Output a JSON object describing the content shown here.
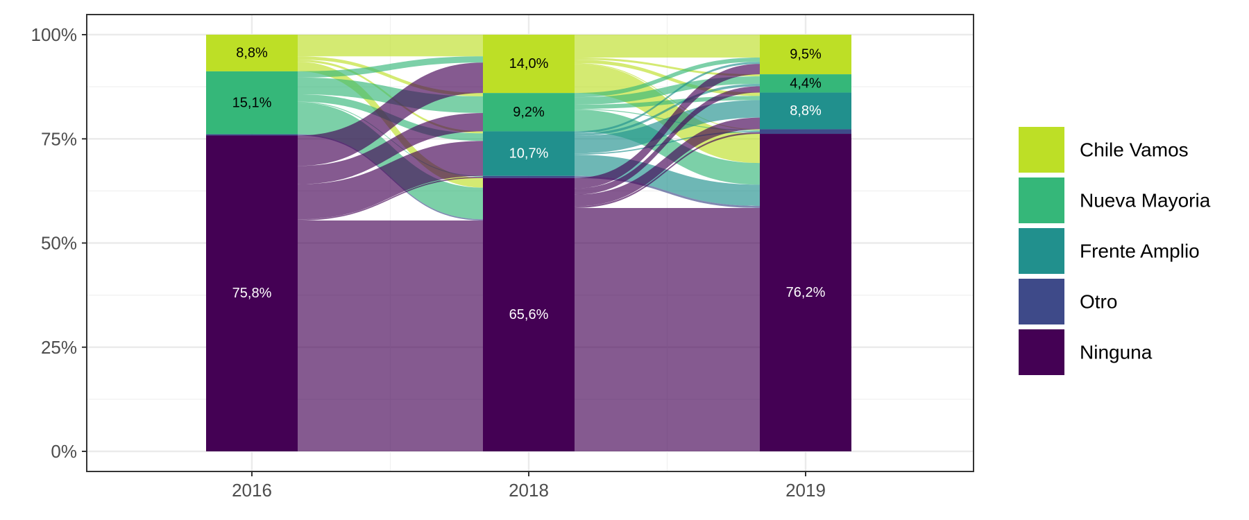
{
  "chart_data": {
    "type": "alluvial",
    "title": "",
    "xlabel": "",
    "ylabel": "",
    "ylim": [
      0,
      100
    ],
    "grid": true,
    "legend_position": "right",
    "x": [
      "2016",
      "2018",
      "2019"
    ],
    "y_ticks": [
      "0%",
      "25%",
      "50%",
      "75%",
      "100%"
    ],
    "y_tick_values": [
      0,
      25,
      50,
      75,
      100
    ],
    "categories": [
      "Chile Vamos",
      "Nueva Mayoria",
      "Frente Amplio",
      "Otro",
      "Ninguna"
    ],
    "colors": {
      "Chile Vamos": "#bddf26",
      "Nueva Mayoria": "#35b779",
      "Frente Amplio": "#21908d",
      "Otro": "#3e4a89",
      "Ninguna": "#440154"
    },
    "series": [
      {
        "name": "Chile Vamos",
        "values": [
          8.8,
          14.0,
          9.5
        ]
      },
      {
        "name": "Nueva Mayoria",
        "values": [
          15.1,
          9.2,
          4.4
        ]
      },
      {
        "name": "Frente Amplio",
        "values": [
          0.0,
          10.7,
          8.8
        ]
      },
      {
        "name": "Otro",
        "values": [
          0.3,
          0.5,
          1.1
        ]
      },
      {
        "name": "Ninguna",
        "values": [
          75.8,
          65.6,
          76.2
        ]
      }
    ],
    "segment_labels": [
      [
        "8,8%",
        "15,1%",
        "",
        "",
        "75,8%"
      ],
      [
        "14,0%",
        "9,2%",
        "10,7%",
        "",
        "65,6%"
      ],
      [
        "9,5%",
        "4,4%",
        "8,8%",
        "",
        "76,2%"
      ]
    ],
    "flows": [
      [
        {
          "from": "Chile Vamos",
          "to": "Chile Vamos",
          "value": 5.2
        },
        {
          "from": "Chile Vamos",
          "to": "Nueva Mayoria",
          "value": 0.8
        },
        {
          "from": "Chile Vamos",
          "to": "Frente Amplio",
          "value": 0.5
        },
        {
          "from": "Chile Vamos",
          "to": "Ninguna",
          "value": 2.3
        },
        {
          "from": "Nueva Mayoria",
          "to": "Chile Vamos",
          "value": 1.5
        },
        {
          "from": "Nueva Mayoria",
          "to": "Nueva Mayoria",
          "value": 4.0
        },
        {
          "from": "Nueva Mayoria",
          "to": "Frente Amplio",
          "value": 1.8
        },
        {
          "from": "Nueva Mayoria",
          "to": "Otro",
          "value": 0.2
        },
        {
          "from": "Nueva Mayoria",
          "to": "Ninguna",
          "value": 7.6
        },
        {
          "from": "Otro",
          "to": "Ninguna",
          "value": 0.3
        },
        {
          "from": "Ninguna",
          "to": "Chile Vamos",
          "value": 7.3
        },
        {
          "from": "Ninguna",
          "to": "Nueva Mayoria",
          "value": 4.4
        },
        {
          "from": "Ninguna",
          "to": "Frente Amplio",
          "value": 8.4
        },
        {
          "from": "Ninguna",
          "to": "Otro",
          "value": 0.3
        },
        {
          "from": "Ninguna",
          "to": "Ninguna",
          "value": 55.4
        }
      ],
      [
        {
          "from": "Chile Vamos",
          "to": "Chile Vamos",
          "value": 5.5
        },
        {
          "from": "Chile Vamos",
          "to": "Nueva Mayoria",
          "value": 0.5
        },
        {
          "from": "Chile Vamos",
          "to": "Frente Amplio",
          "value": 0.8
        },
        {
          "from": "Chile Vamos",
          "to": "Otro",
          "value": 0.2
        },
        {
          "from": "Chile Vamos",
          "to": "Ninguna",
          "value": 7.0
        },
        {
          "from": "Nueva Mayoria",
          "to": "Chile Vamos",
          "value": 1.0
        },
        {
          "from": "Nueva Mayoria",
          "to": "Nueva Mayoria",
          "value": 1.8
        },
        {
          "from": "Nueva Mayoria",
          "to": "Frente Amplio",
          "value": 1.0
        },
        {
          "from": "Nueva Mayoria",
          "to": "Otro",
          "value": 0.2
        },
        {
          "from": "Nueva Mayoria",
          "to": "Ninguna",
          "value": 5.2
        },
        {
          "from": "Frente Amplio",
          "to": "Chile Vamos",
          "value": 0.5
        },
        {
          "from": "Frente Amplio",
          "to": "Nueva Mayoria",
          "value": 0.6
        },
        {
          "from": "Frente Amplio",
          "to": "Frente Amplio",
          "value": 4.2
        },
        {
          "from": "Frente Amplio",
          "to": "Otro",
          "value": 0.3
        },
        {
          "from": "Frente Amplio",
          "to": "Ninguna",
          "value": 5.1
        },
        {
          "from": "Otro",
          "to": "Ninguna",
          "value": 0.5
        },
        {
          "from": "Ninguna",
          "to": "Chile Vamos",
          "value": 2.5
        },
        {
          "from": "Ninguna",
          "to": "Nueva Mayoria",
          "value": 1.5
        },
        {
          "from": "Ninguna",
          "to": "Frente Amplio",
          "value": 2.8
        },
        {
          "from": "Ninguna",
          "to": "Otro",
          "value": 0.4
        },
        {
          "from": "Ninguna",
          "to": "Ninguna",
          "value": 58.4
        }
      ]
    ]
  }
}
